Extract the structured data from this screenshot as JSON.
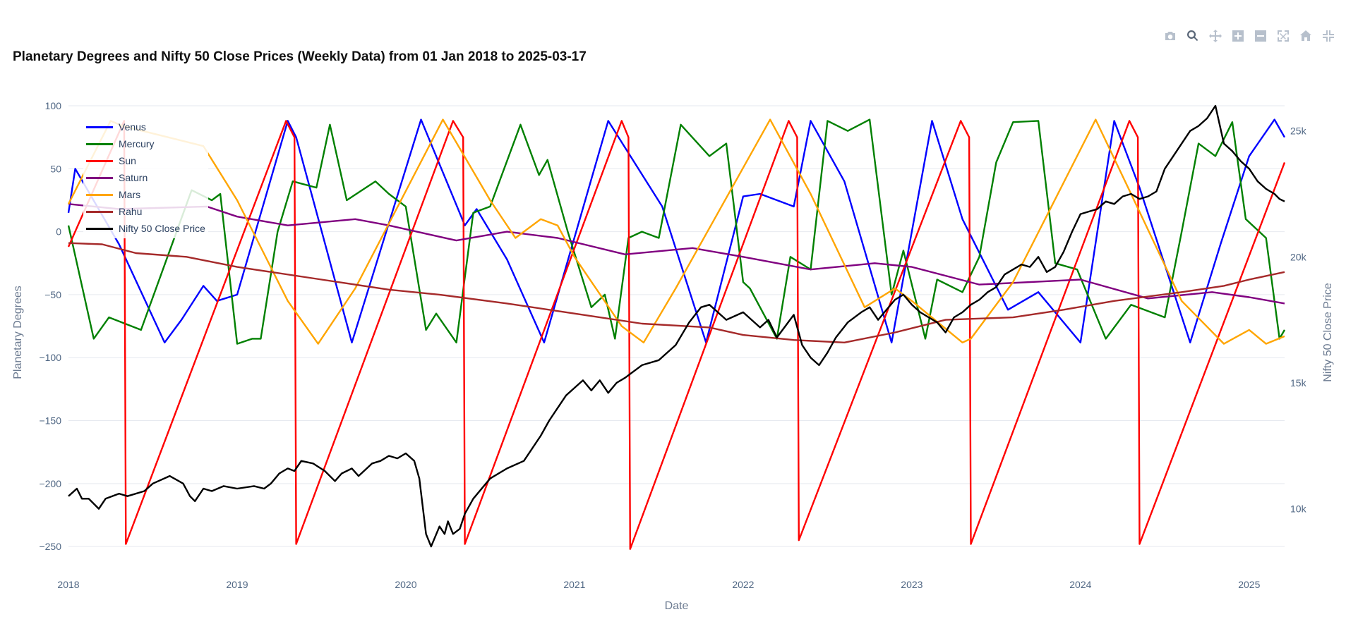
{
  "title": "Planetary Degrees and Nifty 50 Close Prices (Weekly Data) from 01 Jan 2018 to 2025-03-17",
  "modebar": [
    {
      "name": "camera-icon",
      "label": "Download plot as a png"
    },
    {
      "name": "zoom-icon",
      "label": "Zoom"
    },
    {
      "name": "pan-icon",
      "label": "Pan"
    },
    {
      "name": "zoom-in-icon",
      "label": "Zoom in"
    },
    {
      "name": "zoom-out-icon",
      "label": "Zoom out"
    },
    {
      "name": "autoscale-icon",
      "label": "Autoscale"
    },
    {
      "name": "home-icon",
      "label": "Reset axes"
    },
    {
      "name": "fullscreen-icon",
      "label": "Fullscreen"
    }
  ],
  "chart_data": {
    "type": "line",
    "xlabel": "Date",
    "ylabel": "Planetary Degrees",
    "y2label": "Nifty 50 Close Price",
    "xlim": [
      2018.0,
      2025.21
    ],
    "ylim": [
      -260,
      100
    ],
    "y2lim": [
      8000,
      26000
    ],
    "xticks": [
      {
        "v": 2018,
        "label": "2018"
      },
      {
        "v": 2019,
        "label": "2019"
      },
      {
        "v": 2020,
        "label": "2020"
      },
      {
        "v": 2021,
        "label": "2021"
      },
      {
        "v": 2022,
        "label": "2022"
      },
      {
        "v": 2023,
        "label": "2023"
      },
      {
        "v": 2024,
        "label": "2024"
      },
      {
        "v": 2025,
        "label": "2025"
      }
    ],
    "yticks": [
      {
        "v": 100,
        "label": "100"
      },
      {
        "v": 50,
        "label": "50"
      },
      {
        "v": 0,
        "label": "0"
      },
      {
        "v": -50,
        "label": "−50"
      },
      {
        "v": -100,
        "label": "−100"
      },
      {
        "v": -150,
        "label": "−150"
      },
      {
        "v": -200,
        "label": "−200"
      },
      {
        "v": -250,
        "label": "−250"
      }
    ],
    "y2ticks": [
      {
        "v": 25000,
        "label": "25k"
      },
      {
        "v": 20000,
        "label": "20k"
      },
      {
        "v": 15000,
        "label": "15k"
      },
      {
        "v": 10000,
        "label": "10k"
      }
    ],
    "grid": true,
    "legend_position": "top-left",
    "series": [
      {
        "name": "Venus",
        "color": "#0000ff",
        "axis": "y",
        "x": [
          2018.0,
          2018.04,
          2018.3,
          2018.57,
          2018.67,
          2018.8,
          2018.88,
          2019.0,
          2019.3,
          2019.35,
          2019.68,
          2020.09,
          2020.35,
          2020.42,
          2020.6,
          2020.82,
          2021.2,
          2021.52,
          2021.78,
          2022.0,
          2022.1,
          2022.3,
          2022.4,
          2022.6,
          2022.88,
          2023.12,
          2023.3,
          2023.57,
          2023.75,
          2024.0,
          2024.2,
          2024.35,
          2024.65,
          2024.83,
          2025.0,
          2025.15,
          2025.21
        ],
        "y": [
          15,
          50,
          -10,
          -88,
          -70,
          -43,
          -55,
          -50,
          88,
          75,
          -88,
          89,
          5,
          18,
          -22,
          -88,
          88,
          20,
          -88,
          28,
          30,
          20,
          88,
          40,
          -88,
          88,
          10,
          -62,
          -48,
          -88,
          88,
          35,
          -88,
          -10,
          60,
          89,
          75
        ]
      },
      {
        "name": "Mercury",
        "color": "#008000",
        "axis": "y",
        "x": [
          2018.0,
          2018.15,
          2018.24,
          2018.43,
          2018.73,
          2018.85,
          2018.9,
          2019.0,
          2019.09,
          2019.14,
          2019.24,
          2019.33,
          2019.47,
          2019.55,
          2019.65,
          2019.82,
          2019.9,
          2020.0,
          2020.12,
          2020.18,
          2020.3,
          2020.4,
          2020.5,
          2020.68,
          2020.79,
          2020.84,
          2020.96,
          2021.1,
          2021.18,
          2021.24,
          2021.32,
          2021.4,
          2021.5,
          2021.63,
          2021.8,
          2021.9,
          2022.0,
          2022.04,
          2022.2,
          2022.28,
          2022.4,
          2022.5,
          2022.62,
          2022.75,
          2022.88,
          2022.95,
          2023.08,
          2023.15,
          2023.3,
          2023.4,
          2023.5,
          2023.6,
          2023.75,
          2023.85,
          2023.98,
          2024.15,
          2024.3,
          2024.5,
          2024.6,
          2024.7,
          2024.8,
          2024.9,
          2024.98,
          2025.1,
          2025.18,
          2025.21
        ],
        "y": [
          5,
          -85,
          -68,
          -78,
          33,
          25,
          30,
          -89,
          -85,
          -85,
          0,
          40,
          35,
          85,
          25,
          40,
          30,
          20,
          -78,
          -65,
          -88,
          15,
          20,
          85,
          45,
          57,
          0,
          -60,
          -50,
          -85,
          -5,
          0,
          -5,
          85,
          60,
          70,
          -40,
          -45,
          -85,
          -20,
          -30,
          88,
          80,
          89,
          -50,
          -15,
          -85,
          -38,
          -48,
          -20,
          55,
          87,
          88,
          -25,
          -30,
          -85,
          -58,
          -68,
          0,
          70,
          60,
          87,
          10,
          -5,
          -85,
          -78
        ]
      },
      {
        "name": "Sun",
        "color": "#ff0000",
        "axis": "y",
        "x": [
          2018.0,
          2018.33,
          2018.34,
          2019.29,
          2019.34,
          2019.35,
          2020.28,
          2020.34,
          2020.35,
          2021.28,
          2021.32,
          2021.33,
          2022.27,
          2022.32,
          2022.33,
          2023.29,
          2023.34,
          2023.35,
          2024.29,
          2024.34,
          2024.35,
          2025.21
        ],
        "y": [
          -12,
          88,
          -248,
          88,
          75,
          -248,
          88,
          75,
          -248,
          88,
          75,
          -252,
          88,
          75,
          -245,
          88,
          75,
          -248,
          88,
          75,
          -248,
          55
        ]
      },
      {
        "name": "Saturn",
        "color": "#800080",
        "axis": "y",
        "x": [
          2018.0,
          2018.3,
          2018.82,
          2019.0,
          2019.3,
          2019.7,
          2019.9,
          2020.3,
          2020.6,
          2020.9,
          2021.3,
          2021.7,
          2022.0,
          2022.4,
          2022.78,
          2023.0,
          2023.4,
          2024.0,
          2024.4,
          2024.78,
          2025.0,
          2025.21
        ],
        "y": [
          22,
          18,
          20,
          12,
          5,
          10,
          5,
          -7,
          0,
          -5,
          -18,
          -13,
          -20,
          -30,
          -25,
          -28,
          -42,
          -38,
          -53,
          -48,
          -52,
          -57
        ]
      },
      {
        "name": "Mars",
        "color": "#ffa500",
        "axis": "y",
        "x": [
          2018.0,
          2018.25,
          2018.32,
          2018.8,
          2019.0,
          2019.3,
          2019.48,
          2019.7,
          2020.22,
          2020.5,
          2020.65,
          2020.8,
          2020.9,
          2021.0,
          2021.28,
          2021.41,
          2021.6,
          2022.16,
          2022.4,
          2022.72,
          2022.9,
          2023.0,
          2023.3,
          2023.35,
          2023.6,
          2024.09,
          2024.3,
          2024.6,
          2024.85,
          2025.0,
          2025.1,
          2025.21
        ],
        "y": [
          22,
          88,
          84,
          68,
          25,
          -55,
          -89,
          -45,
          89,
          25,
          -5,
          10,
          5,
          -20,
          -75,
          -88,
          -45,
          89,
          30,
          -60,
          -45,
          -55,
          -88,
          -85,
          -40,
          89,
          30,
          -55,
          -89,
          -78,
          -89,
          -83
        ]
      },
      {
        "name": "Rahu",
        "color": "#a52a2a",
        "axis": "y",
        "x": [
          2018.0,
          2018.2,
          2018.4,
          2018.7,
          2019.0,
          2019.5,
          2019.9,
          2020.2,
          2020.6,
          2021.0,
          2021.4,
          2021.8,
          2022.0,
          2022.3,
          2022.6,
          2022.9,
          2023.2,
          2023.6,
          2023.9,
          2024.2,
          2024.6,
          2024.85,
          2025.0,
          2025.21
        ],
        "y": [
          -9,
          -10,
          -17,
          -20,
          -28,
          -38,
          -46,
          -50,
          -57,
          -65,
          -73,
          -76,
          -82,
          -86,
          -88,
          -80,
          -70,
          -68,
          -62,
          -55,
          -48,
          -43,
          -38,
          -32
        ]
      },
      {
        "name": "Nifty 50 Close Price",
        "color": "#000000",
        "axis": "y2",
        "x": [
          2018.0,
          2018.05,
          2018.08,
          2018.12,
          2018.18,
          2018.22,
          2018.3,
          2018.35,
          2018.45,
          2018.5,
          2018.6,
          2018.68,
          2018.72,
          2018.75,
          2018.8,
          2018.85,
          2018.92,
          2019.0,
          2019.1,
          2019.16,
          2019.2,
          2019.25,
          2019.3,
          2019.34,
          2019.38,
          2019.45,
          2019.52,
          2019.58,
          2019.62,
          2019.68,
          2019.72,
          2019.8,
          2019.85,
          2019.9,
          2019.95,
          2020.0,
          2020.05,
          2020.08,
          2020.12,
          2020.15,
          2020.2,
          2020.23,
          2020.25,
          2020.28,
          2020.32,
          2020.35,
          2020.4,
          2020.5,
          2020.6,
          2020.7,
          2020.8,
          2020.85,
          2020.9,
          2020.95,
          2021.0,
          2021.05,
          2021.1,
          2021.15,
          2021.2,
          2021.25,
          2021.3,
          2021.4,
          2021.5,
          2021.6,
          2021.68,
          2021.75,
          2021.8,
          2021.9,
          2022.0,
          2022.1,
          2022.15,
          2022.2,
          2022.3,
          2022.35,
          2022.4,
          2022.45,
          2022.5,
          2022.55,
          2022.62,
          2022.7,
          2022.75,
          2022.8,
          2022.85,
          2022.9,
          2022.95,
          2023.0,
          2023.05,
          2023.1,
          2023.15,
          2023.2,
          2023.25,
          2023.3,
          2023.35,
          2023.4,
          2023.45,
          2023.5,
          2023.55,
          2023.6,
          2023.65,
          2023.7,
          2023.75,
          2023.8,
          2023.85,
          2023.9,
          2023.95,
          2024.0,
          2024.05,
          2024.1,
          2024.15,
          2024.2,
          2024.25,
          2024.3,
          2024.35,
          2024.4,
          2024.45,
          2024.5,
          2024.55,
          2024.6,
          2024.65,
          2024.7,
          2024.75,
          2024.8,
          2024.85,
          2024.9,
          2024.95,
          2025.0,
          2025.05,
          2025.1,
          2025.15,
          2025.18,
          2025.21
        ],
        "y": [
          10500,
          10800,
          10400,
          10400,
          10000,
          10400,
          10600,
          10500,
          10700,
          11000,
          11300,
          11000,
          10500,
          10300,
          10800,
          10700,
          10900,
          10800,
          10900,
          10800,
          11000,
          11400,
          11600,
          11500,
          11900,
          11800,
          11500,
          11100,
          11400,
          11600,
          11300,
          11800,
          11900,
          12100,
          12000,
          12200,
          11900,
          11200,
          9000,
          8500,
          9300,
          9000,
          9500,
          9000,
          9200,
          9800,
          10400,
          11200,
          11600,
          11900,
          12900,
          13500,
          14000,
          14500,
          14800,
          15100,
          14700,
          15100,
          14600,
          15000,
          15200,
          15700,
          15900,
          16500,
          17400,
          18000,
          18100,
          17500,
          17800,
          17200,
          17500,
          16800,
          17700,
          16500,
          16000,
          15700,
          16200,
          16800,
          17400,
          17800,
          18000,
          17500,
          17900,
          18300,
          18500,
          18100,
          17800,
          17600,
          17400,
          17000,
          17600,
          17800,
          18100,
          18300,
          18600,
          18800,
          19300,
          19500,
          19700,
          19600,
          20000,
          19400,
          19600,
          20200,
          21000,
          21700,
          21800,
          21900,
          22200,
          22100,
          22400,
          22500,
          22300,
          22400,
          22600,
          23500,
          24000,
          24500,
          25000,
          25200,
          25500,
          26000,
          24500,
          24200,
          23800,
          23500,
          23000,
          22700,
          22500,
          22300,
          22200
        ]
      }
    ]
  }
}
